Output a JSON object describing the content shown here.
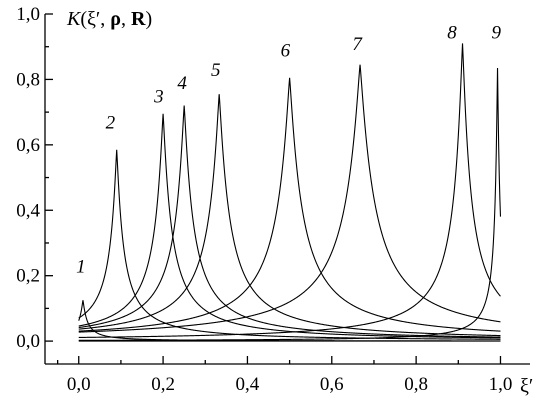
{
  "chart_data": {
    "type": "line",
    "ylabel": "K(ξ′, ρ, R)",
    "ylabel_parts": [
      "K",
      "(ξ′, ",
      "ρ",
      ", ",
      "R",
      ")"
    ],
    "xlabel": "ξ′",
    "xlim": [
      -0.08,
      1.07
    ],
    "ylim": [
      -0.07,
      1.0
    ],
    "x_ticks": [
      {
        "value": 0.0,
        "label": "0,0"
      },
      {
        "value": 0.2,
        "label": "0,2"
      },
      {
        "value": 0.4,
        "label": "0,4"
      },
      {
        "value": 0.6,
        "label": "0,6"
      },
      {
        "value": 0.8,
        "label": "0,8"
      },
      {
        "value": 1.0,
        "label": "1,0"
      }
    ],
    "y_ticks": [
      {
        "value": 0.0,
        "label": "0,0"
      },
      {
        "value": 0.2,
        "label": "0,2"
      },
      {
        "value": 0.4,
        "label": "0,4"
      },
      {
        "value": 0.6,
        "label": "0,6"
      },
      {
        "value": 0.8,
        "label": "0,8"
      },
      {
        "value": 1.0,
        "label": "1,0"
      }
    ],
    "series": [
      {
        "label": "1",
        "peak_x": 0.01,
        "peak_y": 0.125,
        "width": 0.01,
        "label_x": 0.005,
        "label_y": 0.21
      },
      {
        "label": "2",
        "peak_x": 0.09,
        "peak_y": 0.585,
        "width": 0.016,
        "label_x": 0.075,
        "label_y": 0.65
      },
      {
        "label": "3",
        "peak_x": 0.2,
        "peak_y": 0.695,
        "width": 0.02,
        "label_x": 0.19,
        "label_y": 0.73
      },
      {
        "label": "4",
        "peak_x": 0.25,
        "peak_y": 0.72,
        "width": 0.022,
        "label_x": 0.245,
        "label_y": 0.77
      },
      {
        "label": "5",
        "peak_x": 0.333,
        "peak_y": 0.755,
        "width": 0.025,
        "label_x": 0.325,
        "label_y": 0.81
      },
      {
        "label": "6",
        "peak_x": 0.5,
        "peak_y": 0.805,
        "width": 0.03,
        "label_x": 0.49,
        "label_y": 0.87
      },
      {
        "label": "7",
        "peak_x": 0.667,
        "peak_y": 0.845,
        "width": 0.035,
        "label_x": 0.66,
        "label_y": 0.89
      },
      {
        "label": "8",
        "peak_x": 0.91,
        "peak_y": 0.91,
        "width": 0.02,
        "label_x": 0.885,
        "label_y": 0.925
      },
      {
        "label": "9",
        "peak_x": 0.993,
        "peak_y": 0.835,
        "width": 0.006,
        "label_x": 0.99,
        "label_y": 0.925
      }
    ],
    "grid": false,
    "legend": "none"
  }
}
